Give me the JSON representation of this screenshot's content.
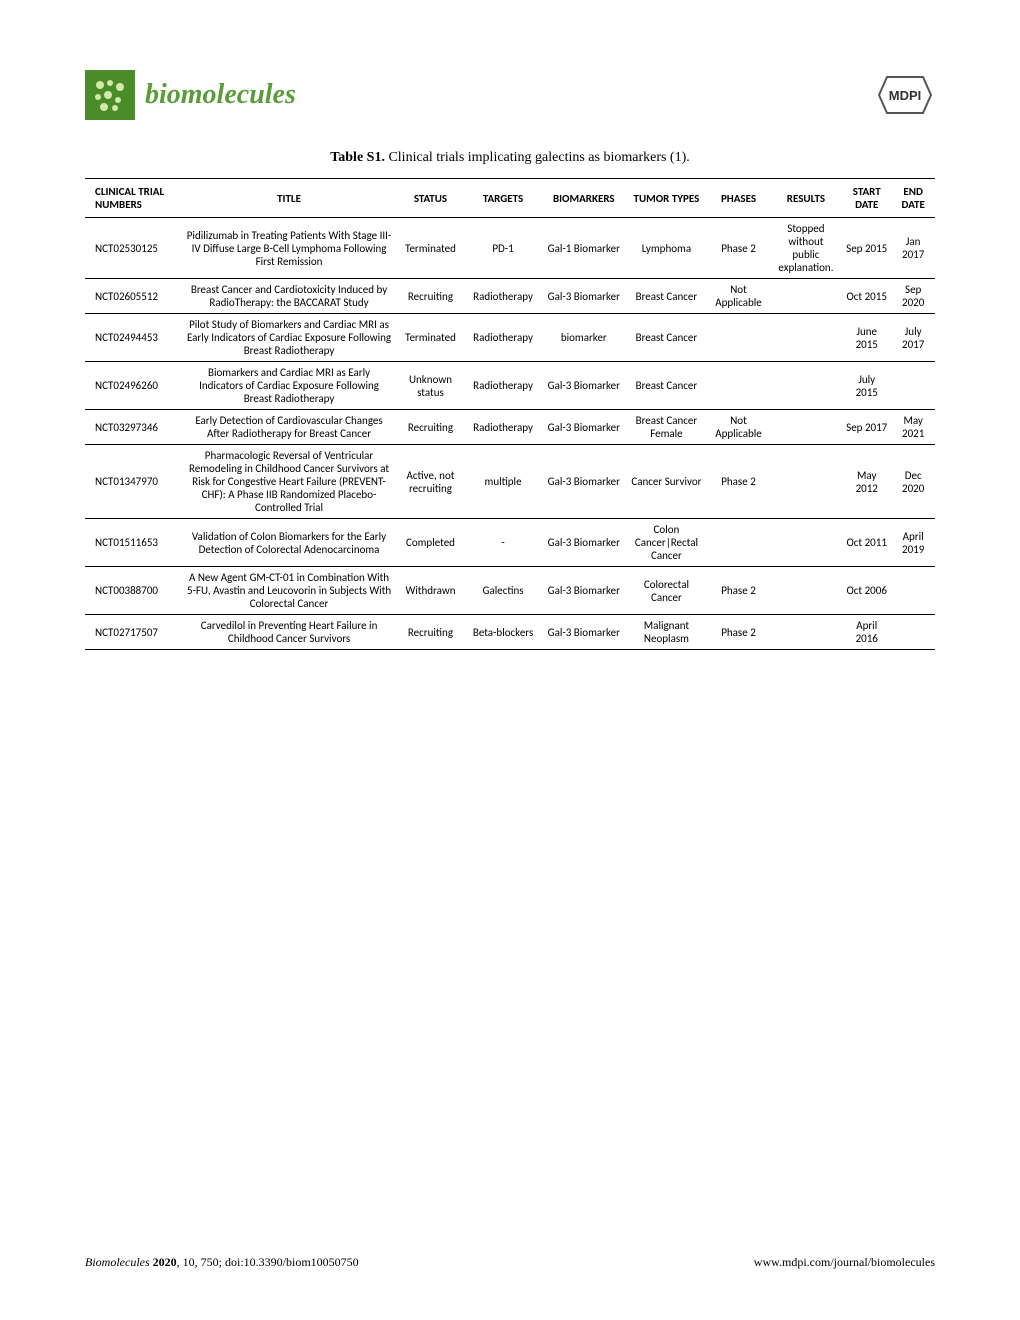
{
  "journal_name": "biomolecules",
  "publisher": "MDPI",
  "caption_label": "Table S1.",
  "caption_text": " Clinical trials implicating galectins as biomarkers (1).",
  "footer_left_journal": "Biomolecules",
  "footer_left_year": " 2020",
  "footer_left_rest": ", 10, 750; doi:10.3390/biom10050750",
  "footer_right": "www.mdpi.com/journal/biomolecules",
  "headers": {
    "nct": "CLINICAL TRIAL NUMBERS",
    "title": "TITLE",
    "status": "STATUS",
    "targets": "TARGETS",
    "biomarkers": "BIOMARKERS",
    "tumor": "TUMOR TYPES",
    "phases": "PHASES",
    "results": "RESULTS",
    "start": "START DATE",
    "end": "END DATE"
  },
  "rows": [
    {
      "nct": "NCT02530125",
      "title": "Pidilizumab in Treating Patients With Stage III-IV Diffuse Large B-Cell Lymphoma Following First Remission",
      "status": "Terminated",
      "targets": "PD-1",
      "biomarkers": "Gal-1 Biomarker",
      "tumor": "Lymphoma",
      "phases": "Phase 2",
      "results": "Stopped without public explanation.",
      "start": "Sep 2015",
      "end": "Jan 2017"
    },
    {
      "nct": "NCT02605512",
      "title": "Breast Cancer and Cardiotoxicity Induced by RadioTherapy: the BACCARAT Study",
      "status": "Recruiting",
      "targets": "Radiotherapy",
      "biomarkers": "Gal-3 Biomarker",
      "tumor": "Breast Cancer",
      "phases": "Not Applicable",
      "results": "",
      "start": "Oct 2015",
      "end": "Sep 2020"
    },
    {
      "nct": "NCT02494453",
      "title": "Pilot Study of Biomarkers and Cardiac MRI as Early Indicators of Cardiac Exposure Following Breast Radiotherapy",
      "status": "Terminated",
      "targets": "Radiotherapy",
      "biomarkers": "biomarker",
      "tumor": "Breast Cancer",
      "phases": "",
      "results": "",
      "start": "June 2015",
      "end": "July 2017"
    },
    {
      "nct": "NCT02496260",
      "title": "Biomarkers and Cardiac MRI as Early Indicators of Cardiac Exposure Following Breast Radiotherapy",
      "status": "Unknown status",
      "targets": "Radiotherapy",
      "biomarkers": "Gal-3 Biomarker",
      "tumor": "Breast Cancer",
      "phases": "",
      "results": "",
      "start": "July 2015",
      "end": ""
    },
    {
      "nct": "NCT03297346",
      "title": "Early Detection of Cardiovascular Changes After Radiotherapy for Breast Cancer",
      "status": "Recruiting",
      "targets": "Radiotherapy",
      "biomarkers": "Gal-3 Biomarker",
      "tumor": "Breast Cancer Female",
      "phases": "Not Applicable",
      "results": "",
      "start": "Sep 2017",
      "end": "May 2021"
    },
    {
      "nct": "NCT01347970",
      "title": "Pharmacologic Reversal of Ventricular Remodeling in Childhood Cancer Survivors at Risk for Congestive Heart Failure (PREVENT-CHF): A Phase IIB Randomized Placebo-Controlled Trial",
      "status": "Active, not recruiting",
      "targets": "multiple",
      "biomarkers": "Gal-3 Biomarker",
      "tumor": "Cancer Survivor",
      "phases": "Phase 2",
      "results": "",
      "start": "May 2012",
      "end": "Dec 2020"
    },
    {
      "nct": "NCT01511653",
      "title": "Validation of Colon Biomarkers for the Early Detection of Colorectal Adenocarcinoma",
      "status": "Completed",
      "targets": "-",
      "biomarkers": "Gal-3 Biomarker",
      "tumor": "Colon Cancer|Rectal Cancer",
      "phases": "",
      "results": "",
      "start": "Oct 2011",
      "end": "April 2019"
    },
    {
      "nct": "NCT00388700",
      "title": "A New Agent GM-CT-01 in Combination With 5-FU, Avastin and Leucovorin in Subjects With Colorectal Cancer",
      "status": "Withdrawn",
      "targets": "Galectins",
      "biomarkers": "Gal-3 Biomarker",
      "tumor": "Colorectal Cancer",
      "phases": "Phase 2",
      "results": "",
      "start": "Oct 2006",
      "end": ""
    },
    {
      "nct": "NCT02717507",
      "title": "Carvedilol in Preventing Heart Failure in Childhood Cancer Survivors",
      "status": "Recruiting",
      "targets": "Beta-blockers",
      "biomarkers": "Gal-3 Biomarker",
      "tumor": "Malignant Neoplasm",
      "phases": "Phase 2",
      "results": "",
      "start": "April 2016",
      "end": ""
    }
  ]
}
